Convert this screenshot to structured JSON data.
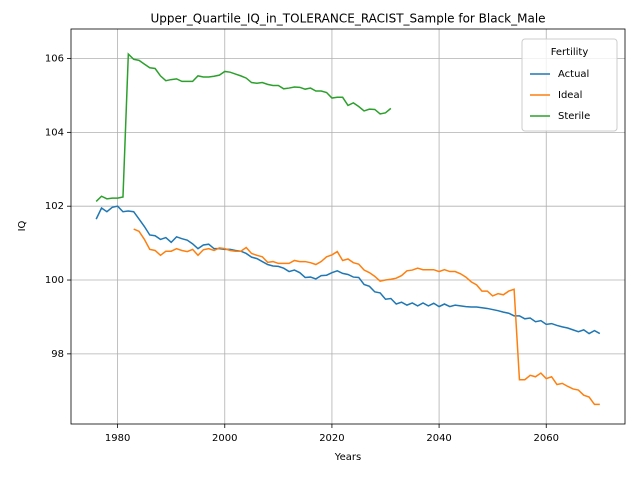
{
  "chart_data": {
    "type": "line",
    "title": "Upper_Quartile_IQ_in_TOLERANCE_RACIST_Sample for Black_Male",
    "xlabel": "Years",
    "ylabel": "IQ",
    "legend_title": "Fertility",
    "legend_loc": "upper right",
    "grid": true,
    "x": [
      1976,
      1977,
      1978,
      1979,
      1980,
      1981,
      1982,
      1983,
      1984,
      1985,
      1986,
      1987,
      1988,
      1989,
      1990,
      1991,
      1992,
      1993,
      1994,
      1995,
      1996,
      1997,
      1998,
      1999,
      2000,
      2001,
      2002,
      2003,
      2004,
      2005,
      2006,
      2007,
      2008,
      2009,
      2010,
      2011,
      2012,
      2013,
      2014,
      2015,
      2016,
      2017,
      2018,
      2019,
      2020,
      2021,
      2022,
      2023,
      2024,
      2025,
      2026,
      2027,
      2028,
      2029,
      2030,
      2031,
      2032,
      2033,
      2034,
      2035,
      2036,
      2037,
      2038,
      2039,
      2040,
      2041,
      2042,
      2043,
      2044,
      2045,
      2046,
      2047,
      2048,
      2049,
      2050,
      2051,
      2052,
      2053,
      2054,
      2055,
      2056,
      2057,
      2058,
      2059,
      2060,
      2061,
      2062,
      2063,
      2064,
      2065,
      2066,
      2067,
      2068,
      2069,
      2070
    ],
    "xlim": [
      1971.3,
      2074.7
    ],
    "xticks": [
      1980,
      2000,
      2020,
      2040,
      2060
    ],
    "ylim": [
      96.1,
      106.8
    ],
    "yticks": [
      98,
      100,
      102,
      104,
      106
    ],
    "series": [
      {
        "name": "Actual",
        "color": "#1f77b4",
        "values": [
          101.65,
          101.95,
          101.85,
          101.97,
          102.0,
          101.85,
          101.87,
          101.85,
          101.65,
          101.45,
          101.22,
          101.2,
          101.1,
          101.15,
          101.02,
          101.17,
          101.12,
          101.08,
          100.98,
          100.85,
          100.95,
          100.97,
          100.85,
          100.85,
          100.83,
          100.83,
          100.8,
          100.78,
          100.72,
          100.62,
          100.58,
          100.5,
          100.42,
          100.38,
          100.37,
          100.32,
          100.23,
          100.27,
          100.2,
          100.07,
          100.08,
          100.03,
          100.12,
          100.13,
          100.2,
          100.25,
          100.18,
          100.15,
          100.08,
          100.07,
          99.88,
          99.83,
          99.68,
          99.65,
          99.48,
          99.5,
          99.35,
          99.4,
          99.32,
          99.38,
          99.3,
          99.38,
          99.3,
          99.37,
          99.28,
          99.35,
          99.28,
          99.32,
          99.3,
          99.28,
          99.27,
          99.27,
          99.25,
          99.23,
          99.2,
          99.17,
          99.13,
          99.1,
          99.03,
          99.03,
          98.95,
          98.97,
          98.87,
          98.9,
          98.8,
          98.82,
          98.77,
          98.73,
          98.7,
          98.65,
          98.6,
          98.65,
          98.55,
          98.63,
          98.55
        ]
      },
      {
        "name": "Ideal",
        "color": "#ff7f0e",
        "values": [
          null,
          null,
          null,
          null,
          null,
          null,
          null,
          101.38,
          101.32,
          101.1,
          100.83,
          100.8,
          100.67,
          100.78,
          100.78,
          100.85,
          100.8,
          100.77,
          100.83,
          100.67,
          100.82,
          100.85,
          100.8,
          100.87,
          100.85,
          100.8,
          100.78,
          100.78,
          100.88,
          100.72,
          100.67,
          100.63,
          100.48,
          100.5,
          100.45,
          100.45,
          100.45,
          100.53,
          100.5,
          100.5,
          100.47,
          100.42,
          100.5,
          100.63,
          100.68,
          100.77,
          100.53,
          100.57,
          100.47,
          100.43,
          100.27,
          100.2,
          100.1,
          99.97,
          100.0,
          100.02,
          100.05,
          100.12,
          100.25,
          100.27,
          100.32,
          100.28,
          100.28,
          100.28,
          100.23,
          100.28,
          100.23,
          100.23,
          100.17,
          100.08,
          99.95,
          99.87,
          99.7,
          99.7,
          99.57,
          99.63,
          99.6,
          99.7,
          99.75,
          97.3,
          97.3,
          97.42,
          97.38,
          97.48,
          97.33,
          97.38,
          97.17,
          97.2,
          97.12,
          97.05,
          97.02,
          96.88,
          96.83,
          96.63,
          96.63
        ]
      },
      {
        "name": "Sterile",
        "color": "#2ca02c",
        "values": [
          102.13,
          102.27,
          102.2,
          102.22,
          102.22,
          102.25,
          106.12,
          105.98,
          105.95,
          105.85,
          105.75,
          105.73,
          105.53,
          105.4,
          105.43,
          105.45,
          105.38,
          105.38,
          105.38,
          105.53,
          105.5,
          105.5,
          105.52,
          105.55,
          105.65,
          105.63,
          105.58,
          105.53,
          105.47,
          105.35,
          105.33,
          105.35,
          105.3,
          105.27,
          105.27,
          105.18,
          105.2,
          105.23,
          105.22,
          105.17,
          105.2,
          105.12,
          105.12,
          105.08,
          104.93,
          104.95,
          104.95,
          104.73,
          104.8,
          104.7,
          104.58,
          104.63,
          104.62,
          104.5,
          104.53,
          104.65,
          null,
          null,
          null,
          null,
          null,
          null,
          null,
          null,
          null,
          null,
          null,
          null,
          null,
          null,
          null,
          null,
          null,
          null,
          null,
          null,
          null,
          null,
          null,
          null,
          null,
          null,
          null,
          null,
          null,
          null,
          null,
          null,
          null,
          null,
          null,
          null,
          null,
          null,
          null
        ]
      }
    ]
  }
}
